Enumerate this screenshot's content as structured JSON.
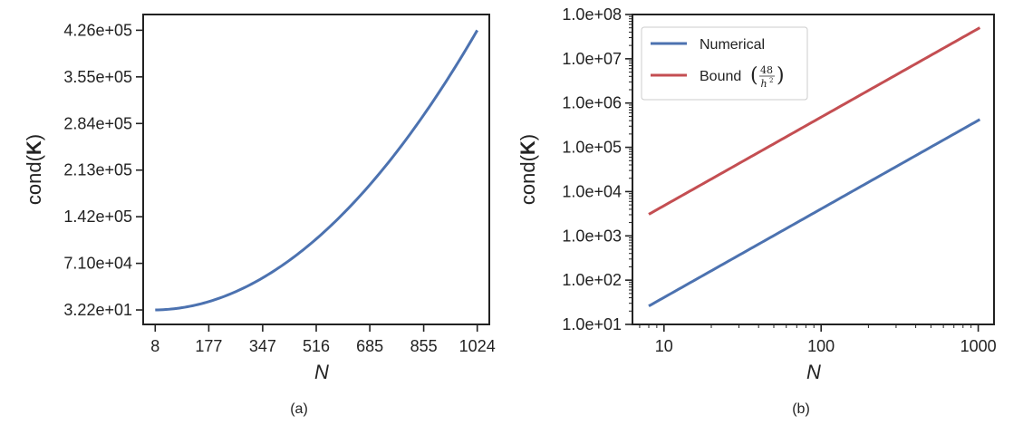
{
  "chart_data": [
    {
      "type": "line",
      "caption": "(a)",
      "xlabel": "N",
      "ylabel_prefix": "cond(",
      "ylabel_bold": "K",
      "ylabel_suffix": ")",
      "xticks": [
        8,
        177,
        347,
        516,
        685,
        855,
        1024
      ],
      "xtick_labels": [
        "8",
        "177",
        "347",
        "516",
        "685",
        "855",
        "1024"
      ],
      "yticks": [
        32.2,
        71000,
        142000,
        213000,
        284000,
        355000,
        426000
      ],
      "ytick_labels": [
        "3.22e+01",
        "7.10e+04",
        "1.42e+05",
        "2.13e+05",
        "2.84e+05",
        "3.55e+05",
        "4.26e+05"
      ],
      "xlim": [
        -30,
        1062
      ],
      "ylim": [
        -22000,
        450000
      ],
      "series": [
        {
          "color": "#4c72b0",
          "model": "power",
          "coef": 0.4062,
          "exponent": 2,
          "x": [
            8,
            1024
          ]
        }
      ]
    },
    {
      "type": "line",
      "caption": "(b)",
      "xlabel": "N",
      "ylabel_prefix": "cond(",
      "ylabel_bold": "K",
      "ylabel_suffix": ")",
      "xscale": "log",
      "yscale": "log",
      "xticks": [
        10,
        100,
        1000
      ],
      "xtick_labels": [
        "10",
        "100",
        "1000"
      ],
      "yticks": [
        10,
        100,
        1000,
        10000,
        100000,
        1000000,
        10000000,
        100000000
      ],
      "ytick_labels": [
        "1.0e+01",
        "1.0e+02",
        "1.0e+03",
        "1.0e+04",
        "1.0e+05",
        "1.0e+06",
        "1.0e+07",
        "1.0e+08"
      ],
      "xlim": [
        6.3,
        1260
      ],
      "ylim": [
        10,
        100000000
      ],
      "grid": false,
      "legend_position": "top-left",
      "series": [
        {
          "name": "Numerical",
          "color": "#4c72b0",
          "model": "power",
          "coef": 0.4062,
          "exponent": 2,
          "x": [
            8,
            1024
          ]
        },
        {
          "name": "Bound",
          "name_math_num": "48",
          "name_math_den": "h",
          "name_math_den_sup": "2",
          "color": "#c44e52",
          "model": "power",
          "coef": 48,
          "exponent": 2,
          "x": [
            8,
            1024
          ]
        }
      ]
    }
  ]
}
